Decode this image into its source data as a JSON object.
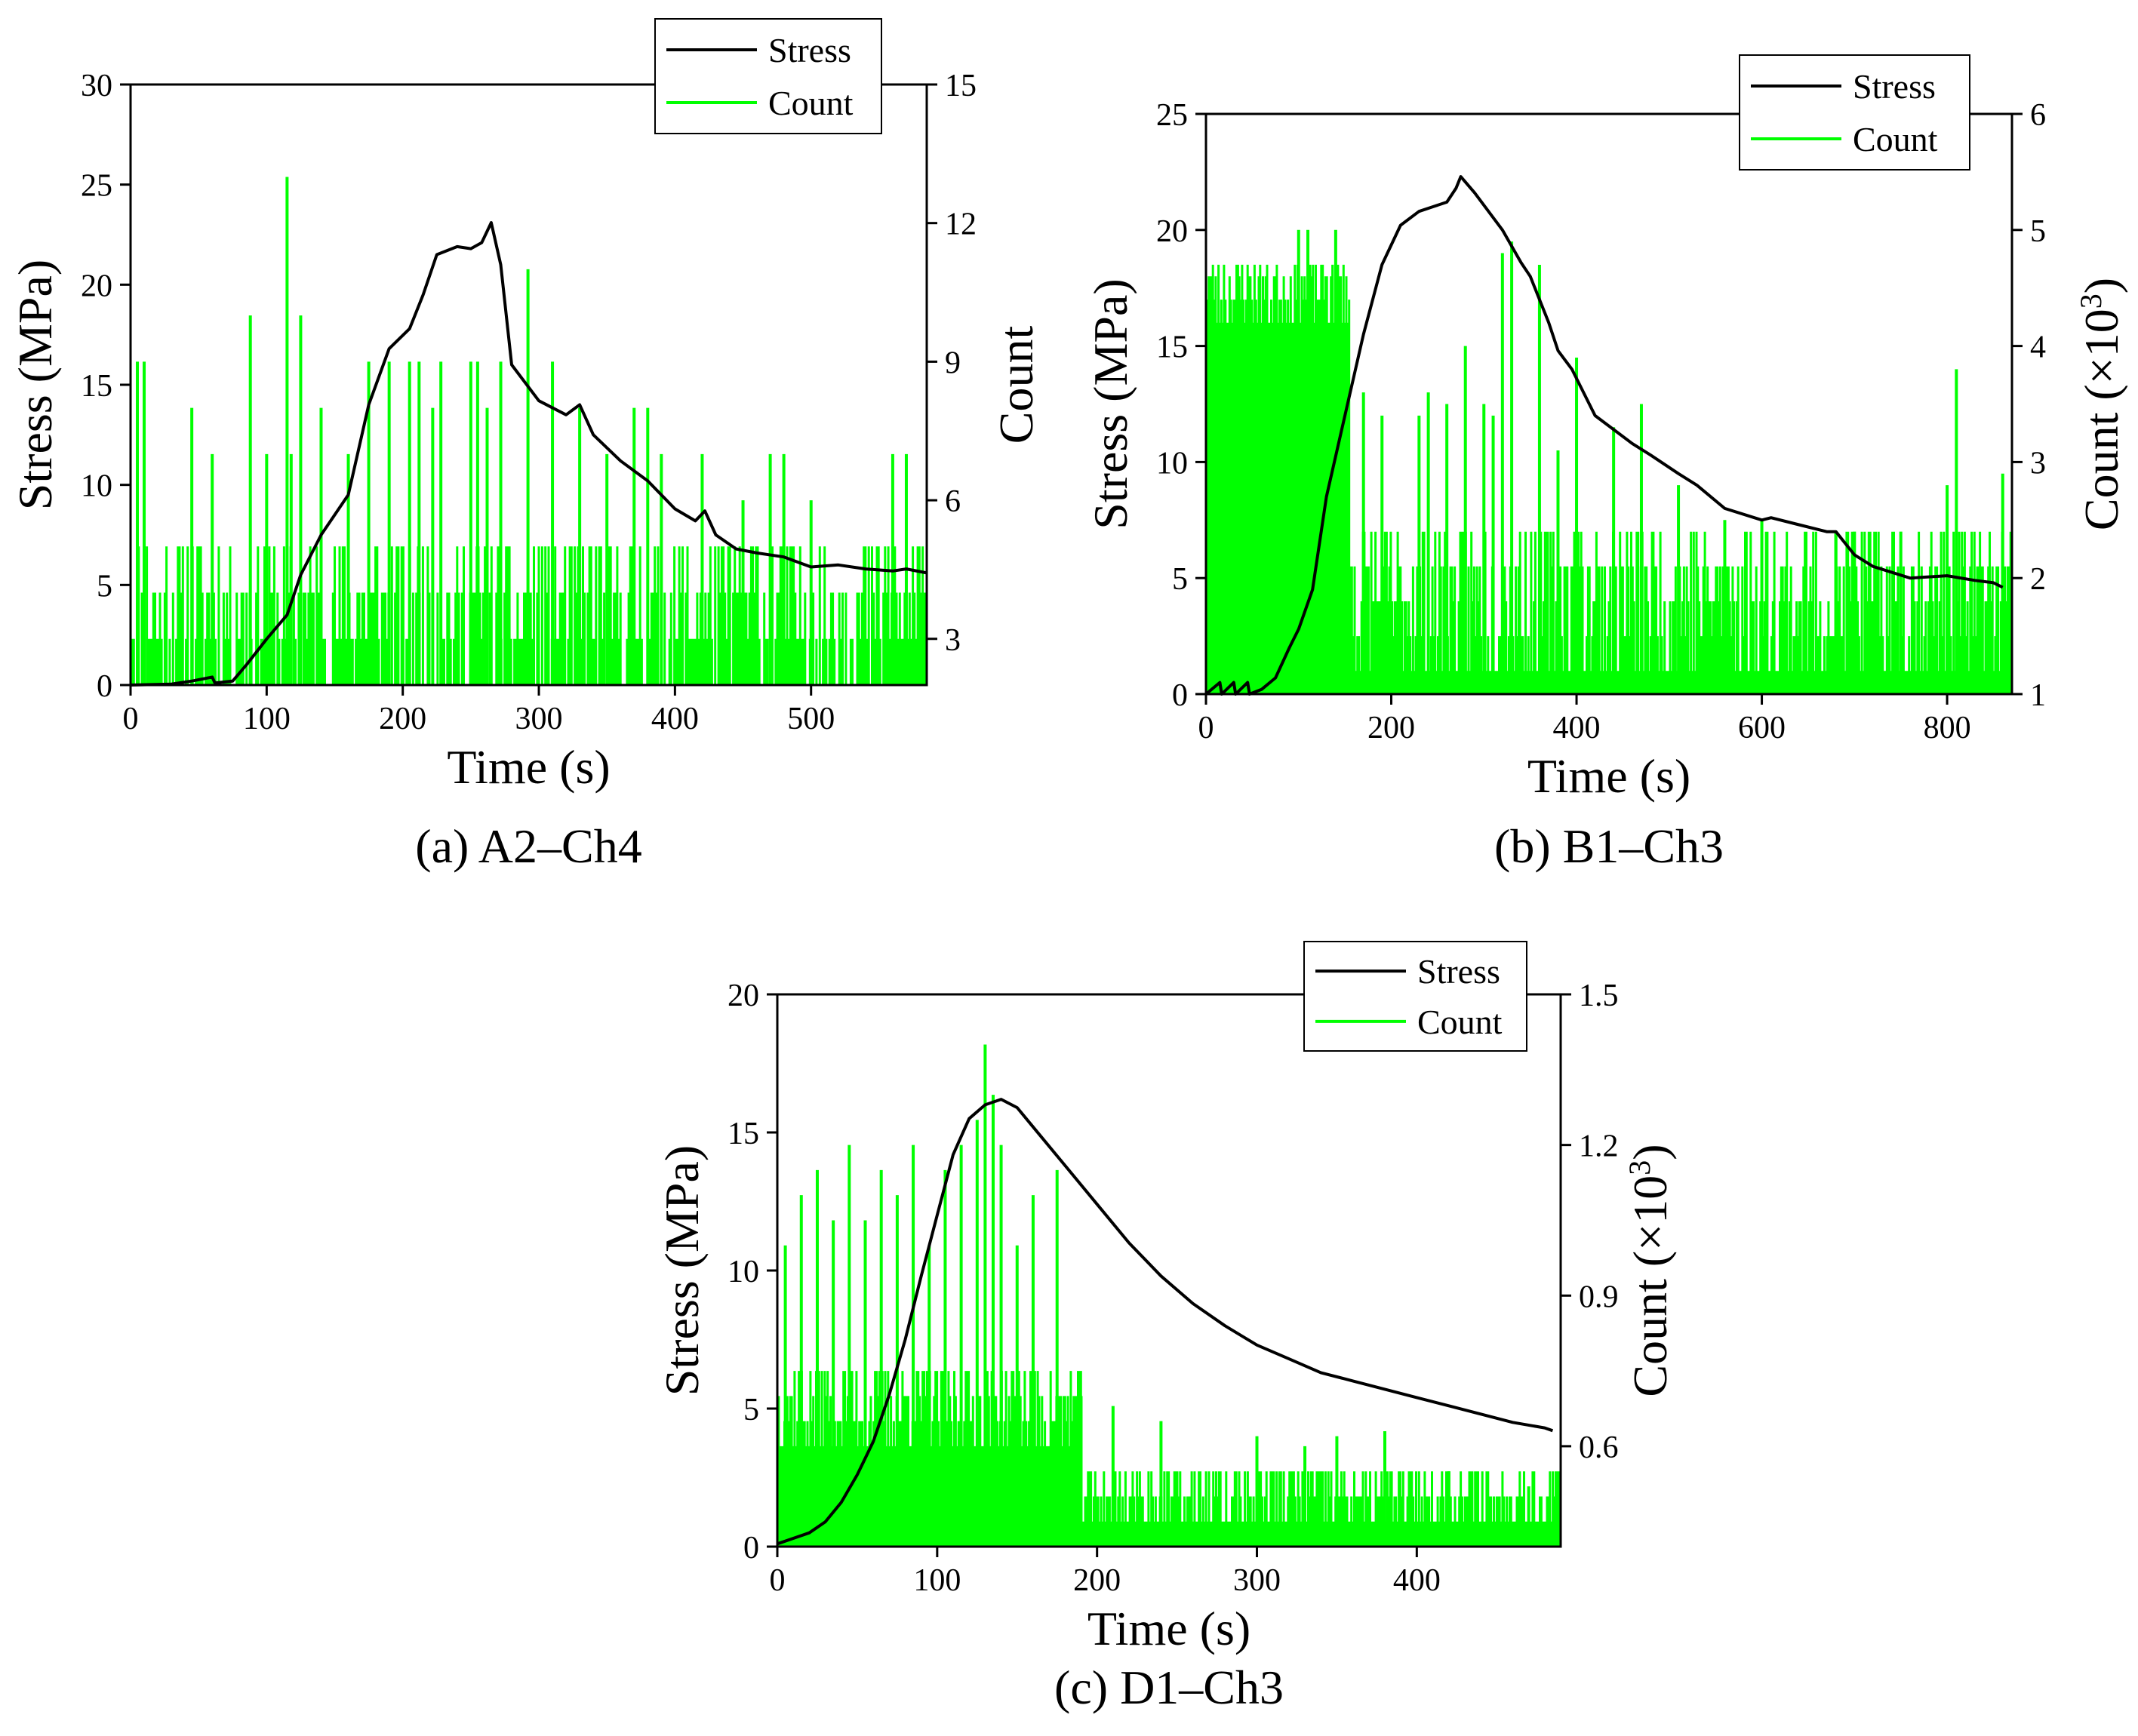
{
  "colors": {
    "stress": "#000000",
    "count": "#00ff00",
    "axes": "#000000",
    "background": "#ffffff"
  },
  "chart_data": [
    {
      "type": "line",
      "caption": "(a) A2–Ch4",
      "xlabel": "Time (s)",
      "ylabel": "Stress (MPa)",
      "y2label": "Count",
      "y2label_sup": "",
      "y2label_suffix": "",
      "xlim": [
        0,
        585
      ],
      "ylim": [
        0,
        30
      ],
      "y2lim": [
        2,
        15
      ],
      "xticks": [
        0,
        100,
        200,
        300,
        400,
        500
      ],
      "yticks": [
        0,
        5,
        10,
        15,
        20,
        25,
        30
      ],
      "y2ticks": [
        3,
        6,
        9,
        12,
        15
      ],
      "legend": {
        "placement": "top-right",
        "entries": [
          "Stress",
          "Count"
        ]
      },
      "count_pattern": {
        "start": 0,
        "end": 585,
        "step": 1.2,
        "levels": [
          2,
          3,
          4,
          5
        ],
        "high_burst_end": 0,
        "high_levels": [],
        "seed": 11
      },
      "series": [
        {
          "name": "Stress",
          "axis": "left",
          "x": [
            0,
            30,
            45,
            60,
            62,
            75,
            85,
            100,
            115,
            125,
            140,
            160,
            175,
            190,
            205,
            215,
            225,
            240,
            250,
            258,
            265,
            272,
            280,
            300,
            320,
            330,
            340,
            360,
            380,
            400,
            415,
            422,
            430,
            445,
            460,
            480,
            500,
            520,
            540,
            560,
            570,
            585
          ],
          "y": [
            0.0,
            0.05,
            0.2,
            0.4,
            0.1,
            0.2,
            1.0,
            2.3,
            3.5,
            5.5,
            7.5,
            9.5,
            14.0,
            16.8,
            17.8,
            19.5,
            21.5,
            21.9,
            21.8,
            22.1,
            23.1,
            21.0,
            16.0,
            14.2,
            13.5,
            14.0,
            12.5,
            11.2,
            10.2,
            8.8,
            8.2,
            8.7,
            7.5,
            6.8,
            6.6,
            6.4,
            5.9,
            6.0,
            5.8,
            5.7,
            5.8,
            5.6
          ]
        },
        {
          "name": "Count",
          "axis": "right",
          "spikes_x": [
            5,
            10,
            45,
            60,
            88,
            100,
            115,
            118,
            125,
            140,
            160,
            175,
            190,
            205,
            212,
            222,
            228,
            250,
            255,
            262,
            272,
            292,
            310,
            330,
            350,
            370,
            380,
            390,
            420,
            450,
            470,
            480,
            500,
            560,
            570
          ],
          "spikes_y": [
            9,
            9,
            8,
            7,
            10,
            7,
            13,
            7,
            10,
            8,
            7,
            9,
            9,
            9,
            9,
            8,
            9,
            9,
            9,
            8,
            9,
            11,
            9,
            8,
            7,
            8,
            8,
            7,
            7,
            6,
            7,
            7,
            6,
            7,
            7
          ]
        }
      ]
    },
    {
      "type": "line",
      "caption": "(b) B1–Ch3",
      "xlabel": "Time (s)",
      "ylabel": "Stress (MPa)",
      "y2label": "Count (×10",
      "y2label_sup": "3",
      "y2label_suffix": ")",
      "xlim": [
        0,
        870
      ],
      "ylim": [
        0,
        25
      ],
      "y2lim": [
        1,
        6
      ],
      "xticks": [
        0,
        200,
        400,
        600,
        800
      ],
      "yticks": [
        0,
        5,
        10,
        15,
        20,
        25
      ],
      "y2ticks": [
        1,
        2,
        3,
        4,
        5,
        6
      ],
      "legend": {
        "placement": "top-right",
        "entries": [
          "Stress",
          "Count"
        ]
      },
      "count_pattern": {
        "start": 0,
        "end": 870,
        "step": 1.5,
        "levels": [
          1.2,
          1.5,
          1.8,
          2.1,
          2.4
        ],
        "high_burst_end": 155,
        "high_levels": [
          4.2,
          4.4,
          4.6,
          4.7
        ],
        "seed": 23
      },
      "series": [
        {
          "name": "Stress",
          "axis": "left",
          "x": [
            0,
            15,
            17,
            30,
            32,
            45,
            47,
            60,
            75,
            90,
            100,
            115,
            130,
            150,
            170,
            190,
            210,
            230,
            245,
            260,
            270,
            275,
            290,
            305,
            320,
            340,
            350,
            370,
            380,
            395,
            420,
            460,
            480,
            510,
            530,
            560,
            600,
            610,
            640,
            670,
            680,
            690,
            700,
            720,
            760,
            800,
            830,
            850,
            860
          ],
          "y": [
            0.0,
            0.5,
            0.0,
            0.5,
            0.0,
            0.5,
            0.0,
            0.2,
            0.7,
            2.0,
            2.8,
            4.5,
            8.5,
            12.0,
            15.5,
            18.5,
            20.2,
            20.8,
            21.0,
            21.2,
            21.8,
            22.3,
            21.6,
            20.8,
            20.0,
            18.6,
            18.0,
            16.0,
            14.8,
            14.0,
            12.0,
            10.8,
            10.3,
            9.5,
            9.0,
            8.0,
            7.5,
            7.6,
            7.3,
            7.0,
            7.0,
            6.5,
            6.0,
            5.5,
            5.0,
            5.1,
            4.9,
            4.8,
            4.6
          ]
        },
        {
          "name": "Count",
          "axis": "right",
          "spikes_x": [
            100,
            110,
            140,
            170,
            190,
            230,
            240,
            260,
            280,
            300,
            310,
            320,
            330,
            360,
            380,
            400,
            440,
            470,
            510,
            560,
            600,
            680,
            700,
            750,
            800,
            810,
            860
          ],
          "spikes_y": [
            5.0,
            5.0,
            5.0,
            3.6,
            3.4,
            3.4,
            3.6,
            3.5,
            4.0,
            3.5,
            3.4,
            4.8,
            4.9,
            4.7,
            3.1,
            3.9,
            3.3,
            3.5,
            2.8,
            2.5,
            2.5,
            2.4,
            2.4,
            2.4,
            2.8,
            3.8,
            2.9
          ]
        }
      ]
    },
    {
      "type": "line",
      "caption": "(c) D1–Ch3",
      "xlabel": "Time (s)",
      "ylabel": "Stress (MPa)",
      "y2label": "Count (×10",
      "y2label_sup": "3",
      "y2label_suffix": ")",
      "xlim": [
        0,
        490
      ],
      "ylim": [
        0,
        20
      ],
      "y2lim": [
        0.4,
        1.5
      ],
      "xticks": [
        0,
        100,
        200,
        300,
        400
      ],
      "yticks": [
        0,
        5,
        10,
        15,
        20
      ],
      "y2ticks": [
        0.6,
        0.9,
        1.2,
        1.5
      ],
      "legend": {
        "placement": "top-right",
        "entries": [
          "Stress",
          "Count"
        ]
      },
      "count_pattern": {
        "start": 0,
        "end": 490,
        "step": 0.9,
        "levels": [
          0.45,
          0.5,
          0.55
        ],
        "high_burst_end": 190,
        "high_levels": [
          0.6,
          0.65,
          0.7,
          0.75
        ],
        "seed": 37
      },
      "series": [
        {
          "name": "Stress",
          "axis": "left",
          "x": [
            0,
            10,
            20,
            30,
            40,
            50,
            60,
            70,
            80,
            90,
            100,
            110,
            120,
            130,
            140,
            150,
            160,
            180,
            200,
            220,
            240,
            260,
            280,
            300,
            320,
            340,
            360,
            380,
            400,
            420,
            440,
            460,
            480,
            485
          ],
          "y": [
            0.1,
            0.3,
            0.5,
            0.9,
            1.6,
            2.6,
            3.8,
            5.5,
            7.5,
            9.8,
            12.0,
            14.2,
            15.5,
            16.0,
            16.2,
            15.9,
            15.2,
            13.8,
            12.4,
            11.0,
            9.8,
            8.8,
            8.0,
            7.3,
            6.8,
            6.3,
            6.0,
            5.7,
            5.4,
            5.1,
            4.8,
            4.5,
            4.3,
            4.2
          ]
        },
        {
          "name": "Count",
          "axis": "right",
          "spikes_x": [
            5,
            15,
            25,
            35,
            45,
            55,
            65,
            75,
            85,
            95,
            105,
            115,
            125,
            130,
            135,
            140,
            150,
            160,
            175,
            190,
            210,
            240,
            300,
            330,
            350,
            380,
            420,
            470
          ],
          "spikes_y": [
            1.0,
            1.1,
            1.15,
            1.05,
            1.2,
            1.05,
            1.15,
            1.1,
            1.2,
            1.0,
            1.15,
            1.2,
            1.25,
            1.4,
            1.3,
            1.2,
            1.0,
            1.1,
            1.15,
            0.7,
            0.68,
            0.65,
            0.62,
            0.6,
            0.62,
            0.63,
            0.55,
            0.52
          ]
        }
      ]
    }
  ]
}
